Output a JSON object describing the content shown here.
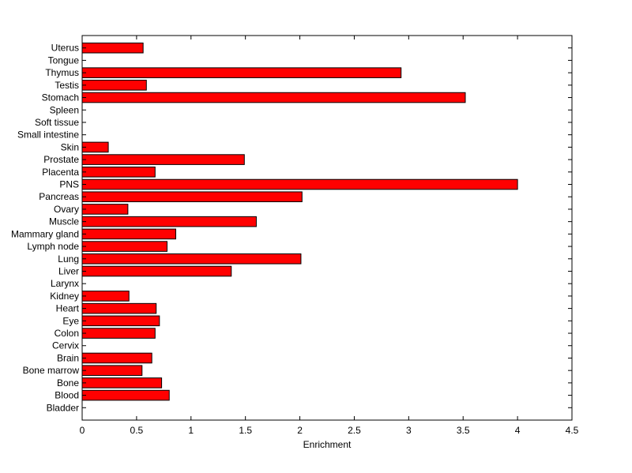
{
  "chart_data": {
    "type": "bar",
    "orientation": "horizontal",
    "title": "",
    "xlabel": "Enrichment",
    "ylabel": "",
    "xlim": [
      0,
      4.5
    ],
    "xticks": [
      0,
      0.5,
      1,
      1.5,
      2,
      2.5,
      3,
      3.5,
      4,
      4.5
    ],
    "xtick_labels": [
      "0",
      "0.5",
      "1",
      "1.5",
      "2",
      "2.5",
      "3",
      "3.5",
      "4",
      "4.5"
    ],
    "grid": false,
    "legend": "none",
    "bar_color": "#ff0000",
    "bar_edge_color": "#000000",
    "categories": [
      "Bladder",
      "Blood",
      "Bone",
      "Bone marrow",
      "Brain",
      "Cervix",
      "Colon",
      "Eye",
      "Heart",
      "Kidney",
      "Larynx",
      "Liver",
      "Lung",
      "Lymph node",
      "Mammary gland",
      "Muscle",
      "Ovary",
      "Pancreas",
      "PNS",
      "Placenta",
      "Prostate",
      "Skin",
      "Small intestine",
      "Soft tissue",
      "Spleen",
      "Stomach",
      "Testis",
      "Thymus",
      "Tongue",
      "Uterus"
    ],
    "values": [
      0,
      0.8,
      0.73,
      0.55,
      0.64,
      0,
      0.67,
      0.71,
      0.68,
      0.43,
      0,
      1.37,
      2.01,
      0.78,
      0.86,
      1.6,
      0.42,
      2.02,
      4.0,
      0.67,
      1.49,
      0.24,
      0,
      0,
      0,
      3.52,
      0.59,
      2.93,
      0,
      0.56
    ]
  }
}
